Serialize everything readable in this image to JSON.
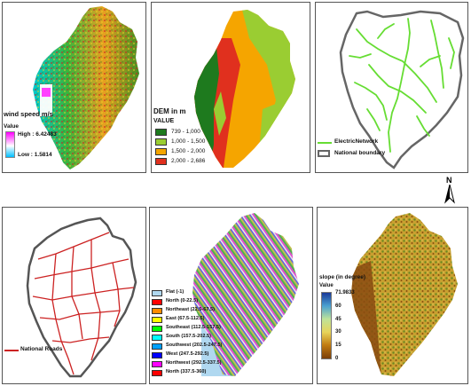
{
  "wind": {
    "title": "wind speed m/s",
    "value_label": "Value",
    "high": "High : 6.42483",
    "low": "Low : 1.5814",
    "colors": {
      "high": "#ff00ff",
      "mid": "#ffffff",
      "low": "#00bfff"
    }
  },
  "dem": {
    "title": "DEM in m",
    "value_label": "VALUE",
    "classes": [
      {
        "label": "739 - 1,000",
        "color": "#1e7a1e"
      },
      {
        "label": "1,000 - 1,500",
        "color": "#9acd32"
      },
      {
        "label": "1,500 - 2,000",
        "color": "#f5a500"
      },
      {
        "label": "2,000 - 2,686",
        "color": "#e0301e"
      }
    ]
  },
  "electric": {
    "items": [
      {
        "label": "ElectricNetwork",
        "color": "#66dd33"
      },
      {
        "label": "National boundary",
        "color": "#666666"
      }
    ]
  },
  "north": {
    "letter": "N"
  },
  "roads": {
    "label": "National Roads",
    "color": "#cc2222"
  },
  "aspect": {
    "classes": [
      {
        "label": "Flat (-1)",
        "color": "#b0d8f0"
      },
      {
        "label": "North (0-22.5)",
        "color": "#ff0000"
      },
      {
        "label": "Northeast (22.5-67.5)",
        "color": "#ff8c00"
      },
      {
        "label": "East (67.5-112.5)",
        "color": "#ffff00"
      },
      {
        "label": "Southeast (112.5-157.5)",
        "color": "#00ff00"
      },
      {
        "label": "South (157.5-202.5)",
        "color": "#00ffff"
      },
      {
        "label": "Southwest (202.5-247.5)",
        "color": "#00a0ff"
      },
      {
        "label": "West (247.5-292.5)",
        "color": "#0000ff"
      },
      {
        "label": "Northwest (292.5-337.5)",
        "color": "#ff00ff"
      },
      {
        "label": "North (337.5-360)",
        "color": "#ff0000"
      }
    ]
  },
  "slope": {
    "title": "slope (in degree)",
    "value_label": "Value",
    "ticks": [
      "71.9833",
      "60",
      "45",
      "30",
      "15",
      "0"
    ],
    "gradient": [
      "#1a3a9a",
      "#4aa0d0",
      "#bfe39a",
      "#e8d45a",
      "#c07a10",
      "#7a3e08"
    ]
  }
}
